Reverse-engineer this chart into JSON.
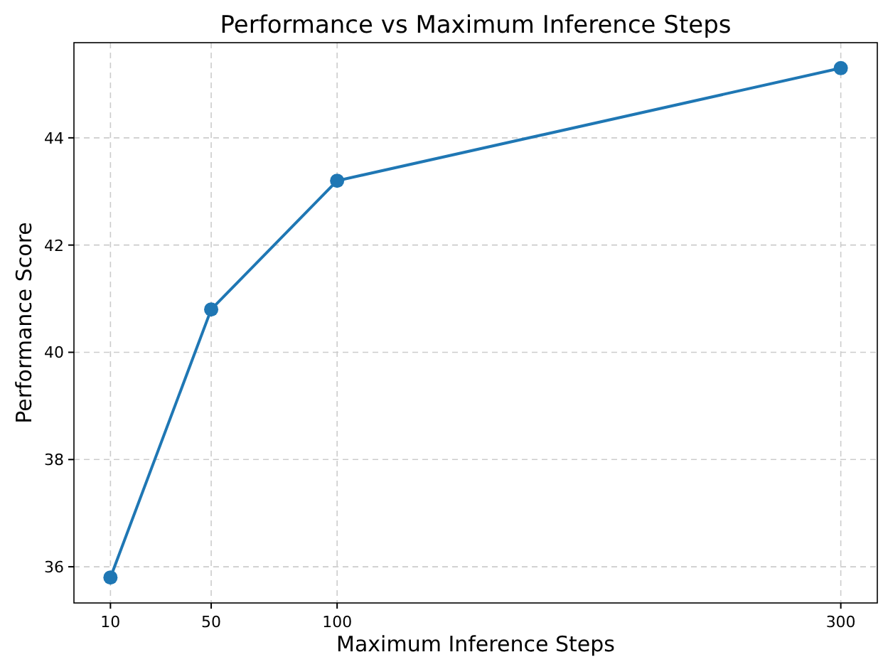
{
  "chart_data": {
    "type": "line",
    "title": "Performance vs Maximum Inference Steps",
    "xlabel": "Maximum Inference Steps",
    "ylabel": "Performance Score",
    "x": [
      10,
      50,
      100,
      300
    ],
    "series": [
      {
        "color": "#1f77b4",
        "values": [
          35.8,
          40.8,
          43.2,
          45.3
        ]
      }
    ],
    "xlim": [
      -4.5,
      314.5
    ],
    "xticks": [
      10,
      50,
      100,
      300
    ],
    "ylim": [
      35.325,
      45.775
    ],
    "yticks": [
      36,
      38,
      40,
      42,
      44
    ],
    "grid": true,
    "marker": "circle",
    "line_style": "solid"
  }
}
